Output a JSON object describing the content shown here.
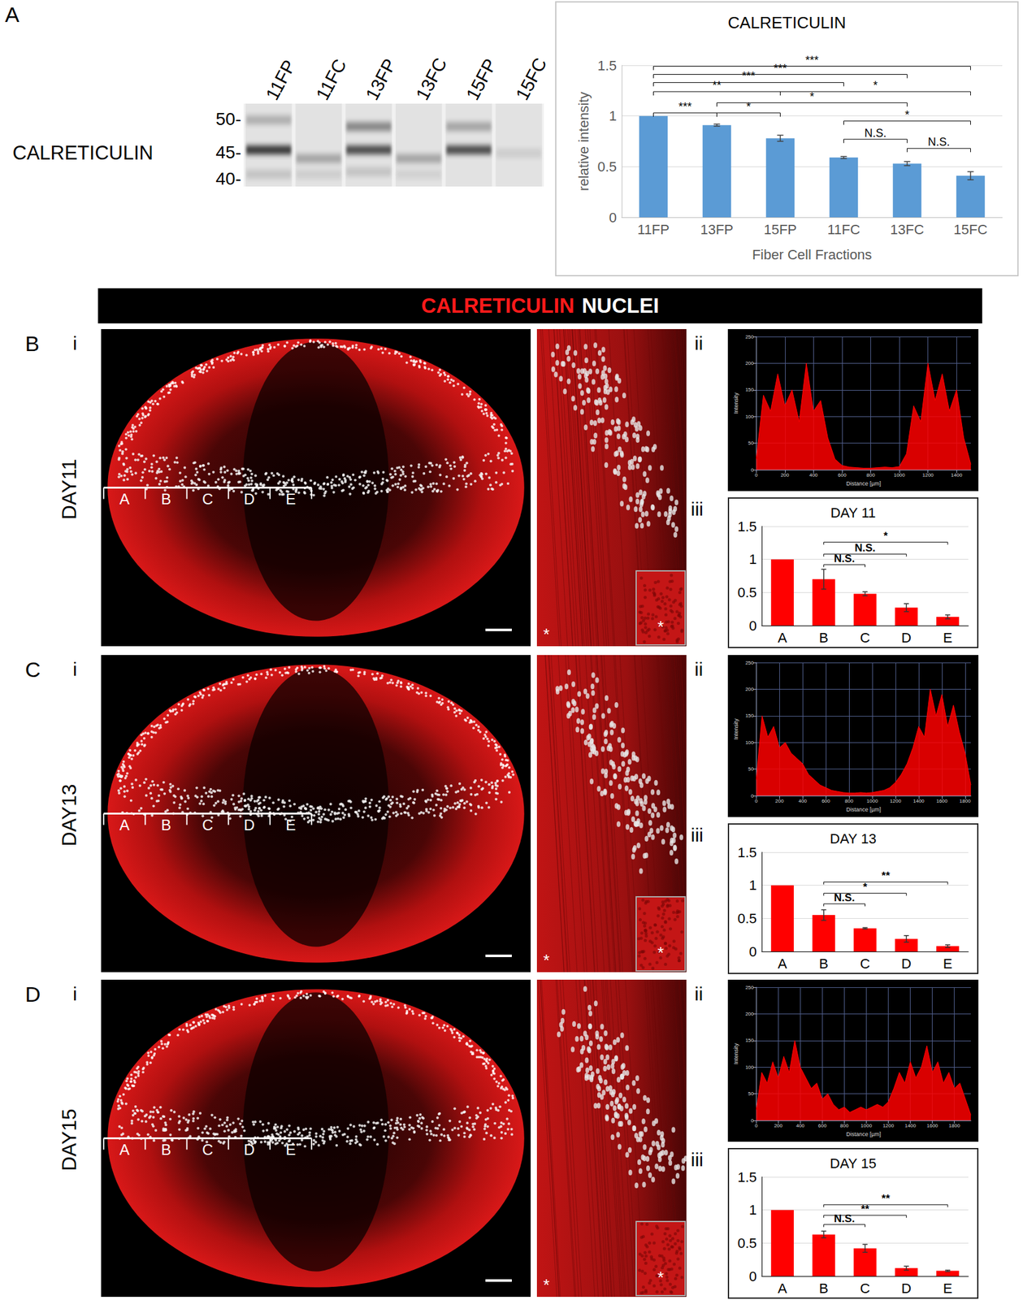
{
  "figure": {
    "panel_A": {
      "label": "A",
      "blot": {
        "protein": "CALRETICULIN",
        "markers": [
          {
            "value": 50,
            "label": "50-"
          },
          {
            "value": 45,
            "label": "45-"
          },
          {
            "value": 40,
            "label": "40-"
          }
        ],
        "lanes": [
          {
            "label": "11FP",
            "bands": [
              {
                "kda": 50,
                "intensity": 0.25
              },
              {
                "kda": 45.5,
                "intensity": 0.85
              },
              {
                "kda": 41,
                "intensity": 0.15
              }
            ]
          },
          {
            "label": "11FC",
            "bands": [
              {
                "kda": 44,
                "intensity": 0.3
              },
              {
                "kda": 41,
                "intensity": 0.1
              }
            ]
          },
          {
            "label": "13FP",
            "bands": [
              {
                "kda": 49,
                "intensity": 0.45
              },
              {
                "kda": 45.5,
                "intensity": 0.75
              },
              {
                "kda": 41.5,
                "intensity": 0.15
              }
            ]
          },
          {
            "label": "13FC",
            "bands": [
              {
                "kda": 44,
                "intensity": 0.3
              },
              {
                "kda": 41,
                "intensity": 0.08
              }
            ]
          },
          {
            "label": "15FP",
            "bands": [
              {
                "kda": 49,
                "intensity": 0.3
              },
              {
                "kda": 45.5,
                "intensity": 0.75
              }
            ]
          },
          {
            "label": "15FC",
            "bands": [
              {
                "kda": 45,
                "intensity": 0.1
              }
            ]
          }
        ]
      }
    },
    "header": {
      "stain": "CALRETICULIN",
      "counterstain": "NUCLEI"
    },
    "rows": [
      {
        "label": "B",
        "day": "DAY11",
        "image_label": "i",
        "profile_label": "ii",
        "bars_label": "iii",
        "segments": [
          "A",
          "B",
          "C",
          "D",
          "E"
        ],
        "asterisk": "*"
      },
      {
        "label": "C",
        "day": "DAY13",
        "image_label": "i",
        "profile_label": "ii",
        "bars_label": "iii",
        "segments": [
          "A",
          "B",
          "C",
          "D",
          "E"
        ],
        "asterisk": "*"
      },
      {
        "label": "D",
        "day": "DAY15",
        "image_label": "i",
        "profile_label": "ii",
        "bars_label": "iii",
        "segments": [
          "A",
          "B",
          "C",
          "D",
          "E"
        ],
        "asterisk": "*"
      }
    ]
  },
  "chart_data": [
    {
      "type": "bar",
      "title": "CALRETICULIN",
      "categories": [
        "11FP",
        "13FP",
        "15FP",
        "11FC",
        "13FC",
        "15FC"
      ],
      "values": [
        1,
        0.91,
        0.78,
        0.59,
        0.53,
        0.41
      ],
      "errors": [
        0,
        0.01,
        0.03,
        0.01,
        0.02,
        0.04
      ],
      "color": "#5b9bd5",
      "x_label": "Fiber Cell Fractions",
      "y_label": "relative intensity",
      "ylim": [
        0,
        1.5
      ],
      "yticks": [
        0,
        0.5,
        1,
        1.5
      ],
      "grid": true,
      "annotations": [
        {
          "from": "11FP",
          "to": "15FC",
          "y": 1.49,
          "label": "***"
        },
        {
          "from": "11FP",
          "to": "13FC",
          "y": 1.41,
          "label": "***"
        },
        {
          "from": "11FP",
          "to": "11FC",
          "y": 1.33,
          "label": "***"
        },
        {
          "from": "11FP",
          "to": "15FP",
          "y": 1.24,
          "label": "**"
        },
        {
          "from": "15FP",
          "to": "15FC",
          "y": 1.24,
          "label": "*"
        },
        {
          "from": "13FP",
          "to": "13FC",
          "y": 1.13,
          "label": "*"
        },
        {
          "from": "11FP",
          "to": "13FP",
          "y": 1.03,
          "label": "***"
        },
        {
          "from": "13FP",
          "to": "15FP",
          "y": 1.03,
          "label": "*"
        },
        {
          "from": "11FC",
          "to": "15FC",
          "y": 0.95,
          "label": "*"
        },
        {
          "from": "11FC",
          "to": "13FC",
          "y": 0.77,
          "label": "N.S."
        },
        {
          "from": "13FC",
          "to": "15FC",
          "y": 0.68,
          "label": "N.S."
        }
      ]
    },
    {
      "type": "area",
      "x_label": "Distance [µm]",
      "y_label": "Intensity",
      "x": [
        0,
        50,
        100,
        150,
        200,
        250,
        300,
        350,
        400,
        450,
        500,
        550,
        600,
        650,
        700,
        750,
        800,
        850,
        900,
        950,
        1000,
        1050,
        1100,
        1150,
        1200,
        1250,
        1300,
        1350,
        1400,
        1450,
        1500
      ],
      "values": [
        20,
        140,
        110,
        180,
        120,
        150,
        90,
        200,
        110,
        130,
        60,
        20,
        8,
        5,
        4,
        3,
        3,
        4,
        5,
        4,
        6,
        30,
        120,
        90,
        200,
        130,
        180,
        110,
        150,
        60,
        10
      ],
      "color": "#ff0000",
      "xlim": [
        0,
        1500
      ],
      "xticks": [
        0,
        200,
        400,
        600,
        800,
        1000,
        1200,
        1400
      ],
      "ylim": [
        0,
        250
      ],
      "yticks": [
        0,
        50,
        100,
        150,
        200,
        250
      ],
      "grid": true
    },
    {
      "type": "bar",
      "title": "DAY 11",
      "categories": [
        "A",
        "B",
        "C",
        "D",
        "E"
      ],
      "values": [
        1,
        0.7,
        0.48,
        0.27,
        0.13
      ],
      "errors": [
        0,
        0.15,
        0.03,
        0.06,
        0.03
      ],
      "color": "#ff0000",
      "ylim": [
        0,
        1.5
      ],
      "yticks": [
        0,
        0.5,
        1,
        1.5
      ],
      "grid": true,
      "annotations": [
        {
          "from": "B",
          "to": "E",
          "y": 1.26,
          "label": "*"
        },
        {
          "from": "B",
          "to": "D",
          "y": 1.08,
          "label": "N.S."
        },
        {
          "from": "B",
          "to": "C",
          "y": 0.92,
          "label": "N.S."
        }
      ]
    },
    {
      "type": "area",
      "x_label": "Distance [µm]",
      "y_label": "Intensity",
      "x": [
        0,
        50,
        100,
        150,
        200,
        250,
        300,
        350,
        400,
        450,
        500,
        550,
        600,
        650,
        700,
        750,
        800,
        850,
        900,
        950,
        1000,
        1050,
        1100,
        1150,
        1200,
        1250,
        1300,
        1350,
        1400,
        1450,
        1500,
        1550,
        1600,
        1650,
        1700,
        1750,
        1800,
        1850
      ],
      "values": [
        30,
        150,
        110,
        130,
        90,
        100,
        80,
        70,
        60,
        40,
        30,
        20,
        15,
        10,
        8,
        6,
        5,
        5,
        6,
        5,
        6,
        8,
        10,
        15,
        25,
        40,
        60,
        90,
        130,
        110,
        200,
        150,
        190,
        130,
        170,
        120,
        80,
        20
      ],
      "color": "#ff0000",
      "xlim": [
        0,
        1850
      ],
      "xticks": [
        0,
        200,
        400,
        600,
        800,
        1000,
        1200,
        1400,
        1600,
        1800
      ],
      "ylim": [
        0,
        250
      ],
      "yticks": [
        0,
        50,
        100,
        150,
        200,
        250
      ],
      "grid": true
    },
    {
      "type": "bar",
      "title": "DAY 13",
      "categories": [
        "A",
        "B",
        "C",
        "D",
        "E"
      ],
      "values": [
        1,
        0.55,
        0.35,
        0.19,
        0.08
      ],
      "errors": [
        0,
        0.08,
        0.01,
        0.05,
        0.02
      ],
      "color": "#ff0000",
      "ylim": [
        0,
        1.5
      ],
      "yticks": [
        0,
        0.5,
        1,
        1.5
      ],
      "grid": true,
      "annotations": [
        {
          "from": "B",
          "to": "E",
          "y": 1.05,
          "label": "**"
        },
        {
          "from": "B",
          "to": "D",
          "y": 0.88,
          "label": "*"
        },
        {
          "from": "B",
          "to": "C",
          "y": 0.72,
          "label": "N.S."
        }
      ]
    },
    {
      "type": "area",
      "x_label": "Distance [µm]",
      "y_label": "Intensity",
      "x": [
        0,
        50,
        100,
        150,
        200,
        250,
        300,
        350,
        400,
        450,
        500,
        550,
        600,
        650,
        700,
        750,
        800,
        850,
        900,
        950,
        1000,
        1050,
        1100,
        1150,
        1200,
        1250,
        1300,
        1350,
        1400,
        1450,
        1500,
        1550,
        1600,
        1650,
        1700,
        1750,
        1800,
        1850,
        1900,
        1950
      ],
      "values": [
        20,
        90,
        70,
        110,
        80,
        120,
        90,
        150,
        100,
        80,
        60,
        70,
        40,
        50,
        30,
        20,
        25,
        15,
        20,
        25,
        20,
        25,
        30,
        25,
        35,
        60,
        90,
        70,
        110,
        80,
        100,
        140,
        90,
        110,
        70,
        90,
        60,
        70,
        40,
        10
      ],
      "color": "#ff0000",
      "xlim": [
        0,
        1950
      ],
      "xticks": [
        0,
        200,
        400,
        600,
        800,
        1000,
        1200,
        1400,
        1600,
        1800
      ],
      "ylim": [
        0,
        250
      ],
      "yticks": [
        0,
        50,
        100,
        150,
        200,
        250
      ],
      "grid": true
    },
    {
      "type": "bar",
      "title": "DAY 15",
      "categories": [
        "A",
        "B",
        "C",
        "D",
        "E"
      ],
      "values": [
        1,
        0.63,
        0.42,
        0.12,
        0.08
      ],
      "errors": [
        0,
        0.05,
        0.06,
        0.03,
        0.01
      ],
      "color": "#ff0000",
      "ylim": [
        0,
        1.5
      ],
      "yticks": [
        0,
        0.5,
        1,
        1.5
      ],
      "grid": true,
      "annotations": [
        {
          "from": "B",
          "to": "E",
          "y": 1.08,
          "label": "**"
        },
        {
          "from": "B",
          "to": "D",
          "y": 0.92,
          "label": "**"
        },
        {
          "from": "B",
          "to": "C",
          "y": 0.78,
          "label": "N.S."
        }
      ]
    }
  ]
}
